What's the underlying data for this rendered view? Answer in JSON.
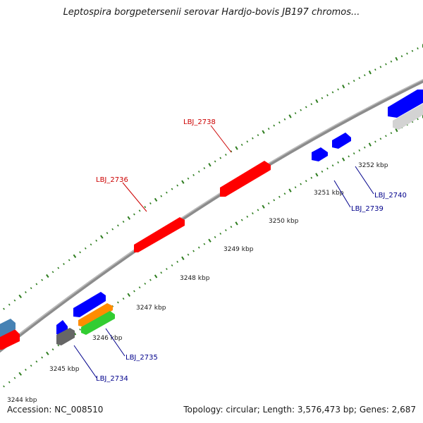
{
  "title": "Leptospira borgpetersenii serovar Hardjo-bovis JB197 chromos...",
  "footer": {
    "accession": "Accession: NC_008510",
    "summary": "Topology: circular; Length: 3,576,473 bp; Genes: 2,687"
  },
  "colors": {
    "backbone": "#8c8c8c",
    "tick": "#2e7d1f",
    "forward_gene": "#ff0000",
    "reverse_gene": "#0000ff",
    "forward_label": "#cc0000",
    "reverse_label": "#00008b"
  },
  "scale_labels": [
    "3244 kbp",
    "3245 kbp",
    "3246 kbp",
    "3247 kbp",
    "3248 kbp",
    "3249 kbp",
    "3250 kbp",
    "3251 kbp",
    "3252 kbp"
  ],
  "gene_labels": [
    {
      "label": "LBJ_2736",
      "strand": "forward"
    },
    {
      "label": "LBJ_2738",
      "strand": "forward"
    },
    {
      "label": "LBJ_2734",
      "strand": "reverse"
    },
    {
      "label": "LBJ_2735",
      "strand": "reverse"
    },
    {
      "label": "LBJ_2739",
      "strand": "reverse"
    },
    {
      "label": "LBJ_2740",
      "strand": "reverse"
    }
  ],
  "features": [
    {
      "strand": "forward",
      "color": "#ff0000",
      "label": "LBJ_2736"
    },
    {
      "strand": "forward",
      "color": "#ff0000",
      "label": "LBJ_2738"
    },
    {
      "strand": "forward",
      "color": "#ff0000"
    },
    {
      "strand": "forward",
      "color": "#4682b4"
    },
    {
      "strand": "reverse",
      "color": "#0000ff"
    },
    {
      "strand": "reverse",
      "color": "#0000ff"
    },
    {
      "strand": "reverse",
      "color": "#0000ff"
    },
    {
      "strand": "reverse",
      "color": "#0000ff",
      "label": "LBJ_2739"
    },
    {
      "strand": "reverse",
      "color": "#0000ff",
      "label": "LBJ_2740"
    },
    {
      "strand": "reverse",
      "color": "#ff8c00"
    },
    {
      "strand": "reverse",
      "color": "#32cd32"
    },
    {
      "strand": "reverse",
      "color": "#666666",
      "label": "LBJ_2734"
    },
    {
      "strand": "reverse",
      "color": "#d3d3d3"
    }
  ]
}
